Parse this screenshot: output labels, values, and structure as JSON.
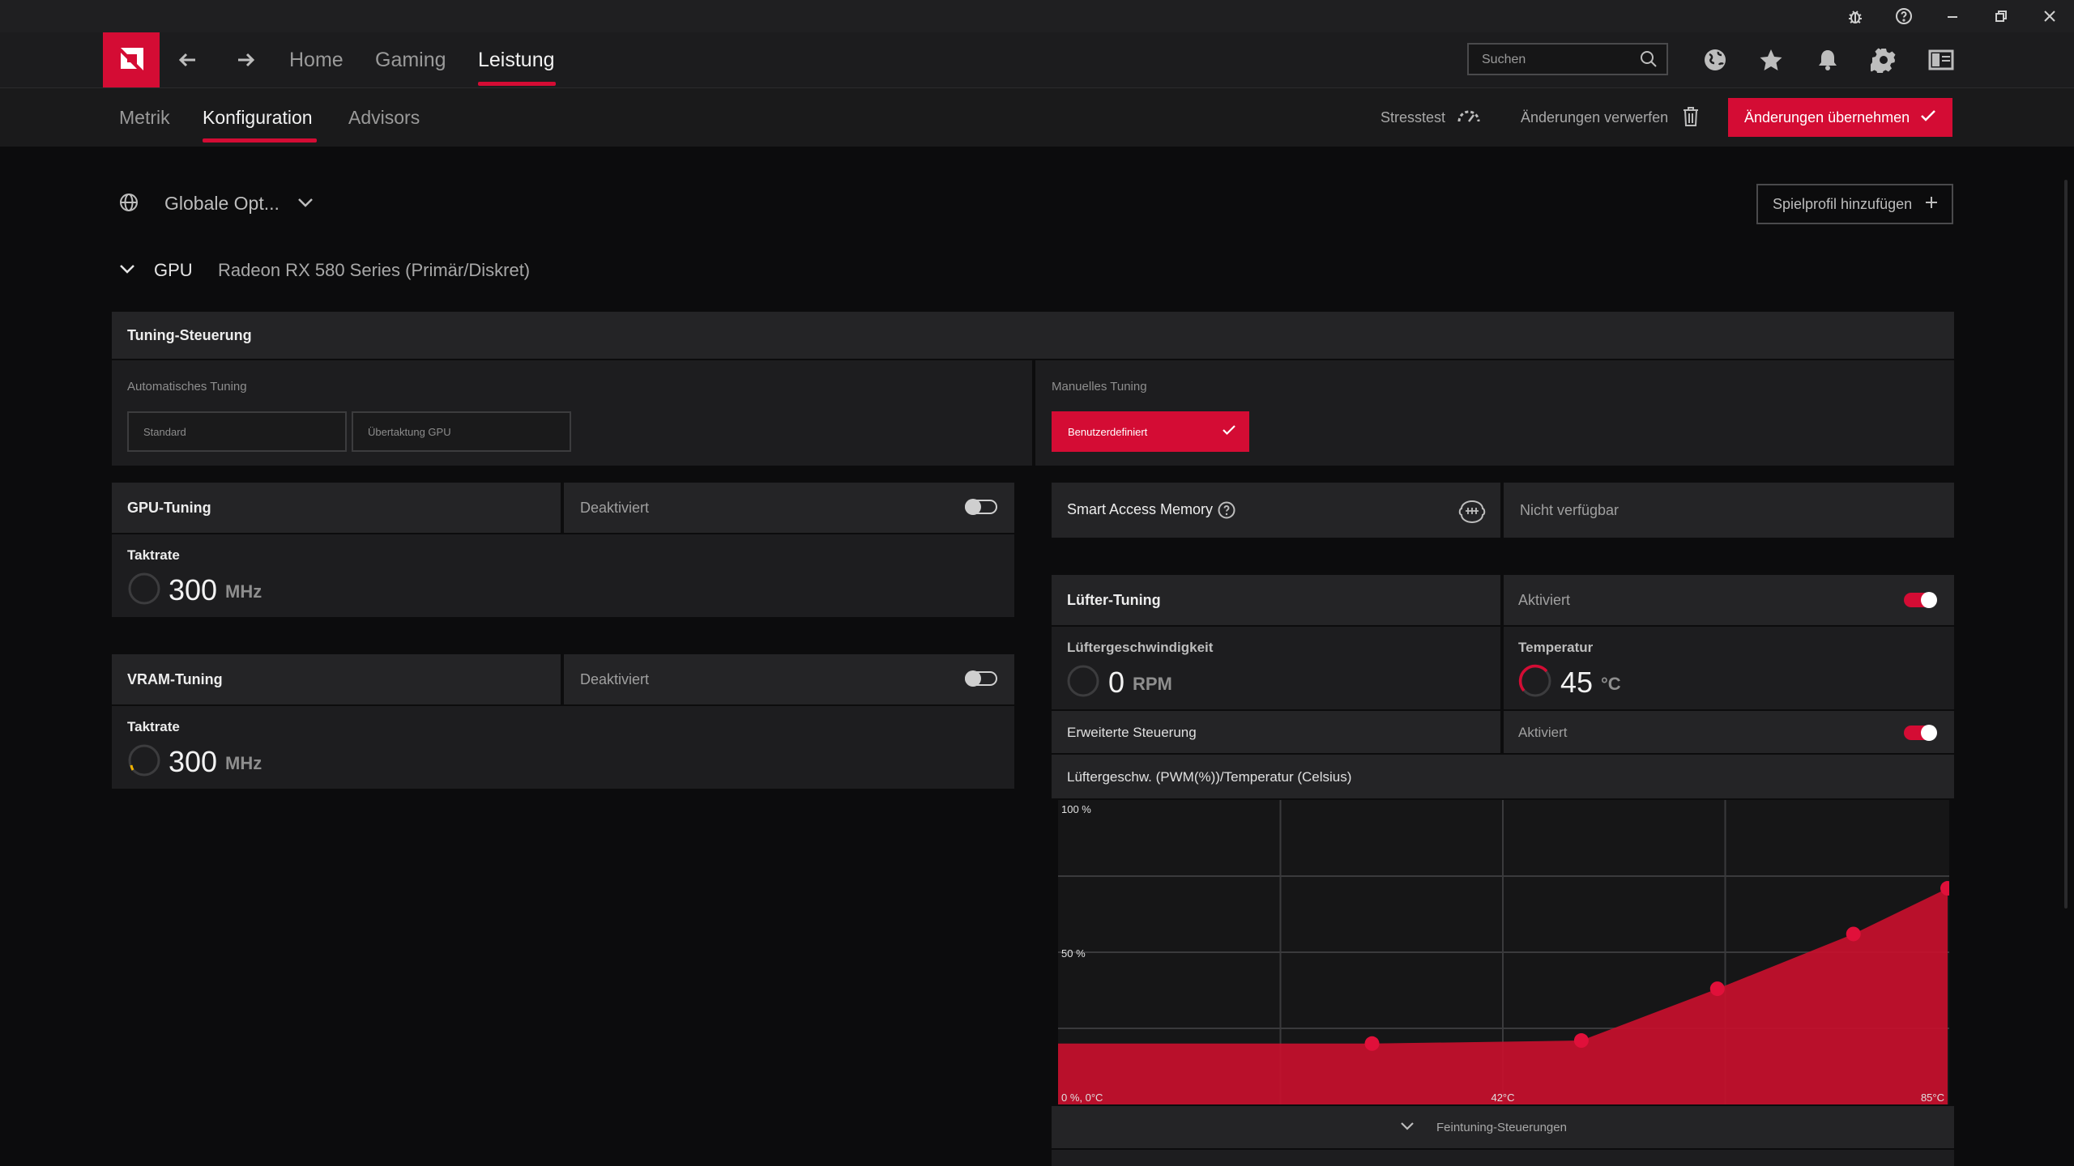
{
  "app": {
    "logo": "amd-logo"
  },
  "nav": {
    "items": [
      "Home",
      "Gaming",
      "Leistung"
    ],
    "active": "Leistung",
    "search_placeholder": "Suchen"
  },
  "subnav": {
    "items": [
      "Metrik",
      "Konfiguration",
      "Advisors"
    ],
    "active": "Konfiguration",
    "stresstest": "Stresstest",
    "discard": "Änderungen verwerfen",
    "apply": "Änderungen übernehmen"
  },
  "profile": {
    "selected": "Globale Opt...",
    "add_button": "Spielprofil hinzufügen"
  },
  "gpu": {
    "label": "GPU",
    "name": "Radeon RX 580 Series (Primär/Diskret)"
  },
  "tuning_control": {
    "title": "Tuning-Steuerung",
    "auto_label": "Automatisches Tuning",
    "auto_options": [
      "Standard",
      "Übertaktung GPU"
    ],
    "manual_label": "Manuelles Tuning",
    "manual_selected": "Benutzerdefiniert"
  },
  "gpu_tuning": {
    "title": "GPU-Tuning",
    "status": "Deaktiviert",
    "enabled": false,
    "clock_label": "Taktrate",
    "clock_value": "300",
    "clock_unit": "MHz"
  },
  "vram_tuning": {
    "title": "VRAM-Tuning",
    "status": "Deaktiviert",
    "enabled": false,
    "clock_label": "Taktrate",
    "clock_value": "300",
    "clock_unit": "MHz"
  },
  "smart_access_memory": {
    "title": "Smart Access Memory",
    "status": "Nicht verfügbar"
  },
  "fan_tuning": {
    "title": "Lüfter-Tuning",
    "status": "Aktiviert",
    "enabled": true,
    "speed_label": "Lüftergeschwindigkeit",
    "speed_value": "0",
    "speed_unit": "RPM",
    "temp_label": "Temperatur",
    "temp_value": "45",
    "temp_unit": "°C",
    "advanced_label": "Erweiterte Steuerung",
    "advanced_status": "Aktiviert",
    "advanced_enabled": true,
    "chart_title": "Lüftergeschw. (PWM(%))/Temperatur (Celsius)",
    "fine_tuning": "Feintuning-Steuerungen"
  },
  "chart_data": {
    "type": "area",
    "title": "Lüftergeschw. (PWM(%))/Temperatur (Celsius)",
    "y_tick_labels": [
      "100 %",
      "50 %",
      "0 %"
    ],
    "x_tick_labels": [
      "0°C",
      "42°C",
      "85°C"
    ],
    "xlim": [
      0,
      85
    ],
    "ylim": [
      0,
      100
    ],
    "series": [
      {
        "x": [
          30,
          50,
          63,
          76,
          85
        ],
        "y": [
          20,
          21,
          38,
          56,
          71
        ]
      }
    ],
    "colors": {
      "fill": "#c8102e",
      "point": "#e0103a"
    }
  },
  "colors": {
    "accent": "#d40c34",
    "panel": "#1d1d1f",
    "background": "#0c0c0d"
  }
}
